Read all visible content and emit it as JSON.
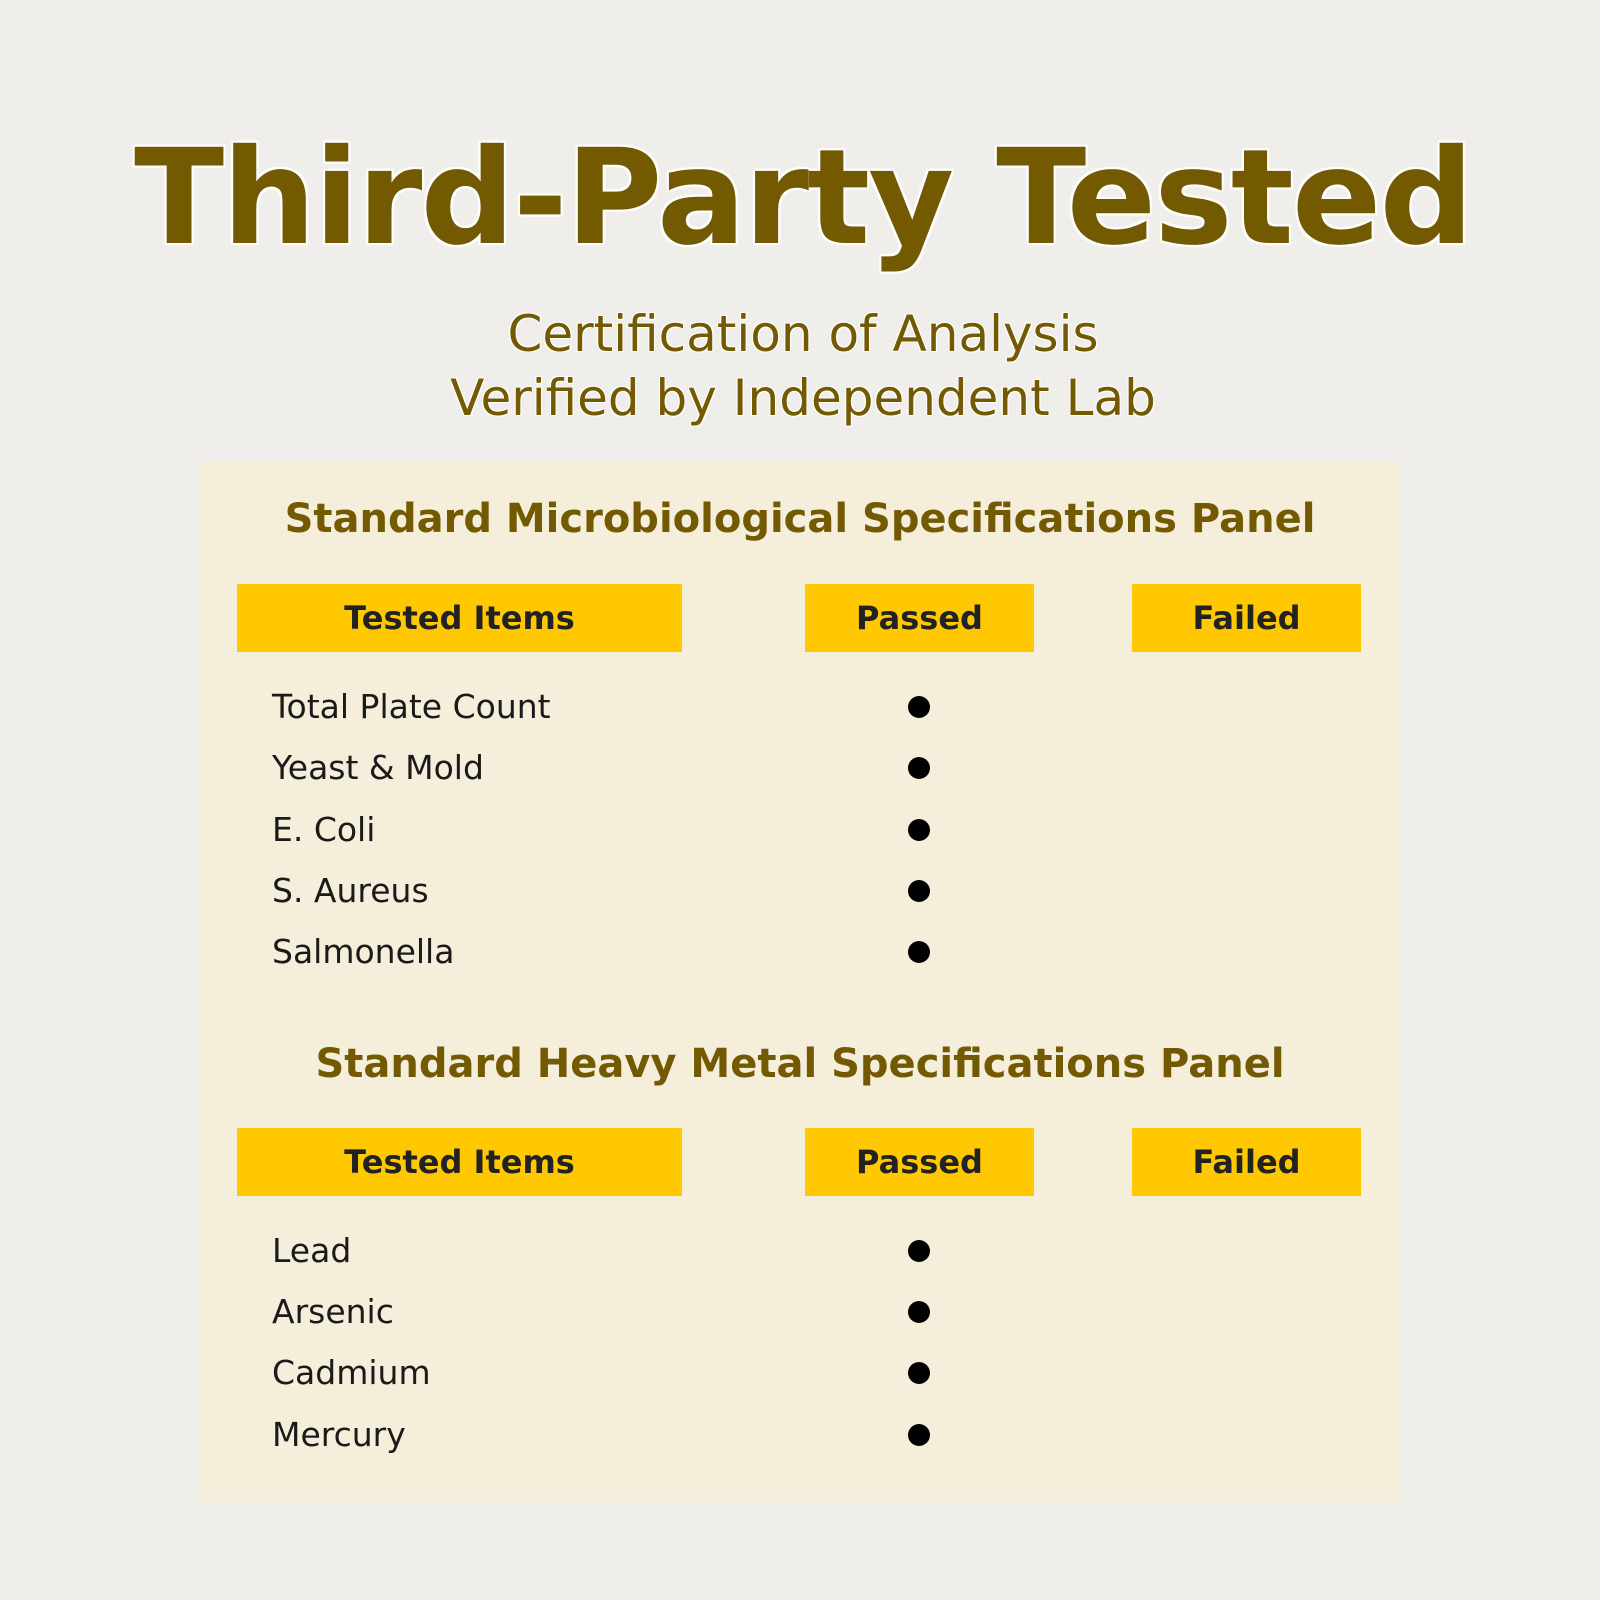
{
  "title": "Third-Party Tested",
  "subtitle": [
    "Certification of Analysis",
    "Verified by Independent Lab"
  ],
  "colors": {
    "title": "#735a00",
    "header_bar": "#ffc800",
    "panel": "#f5eedb",
    "background": "#efeeea"
  },
  "panels": [
    {
      "heading": "Standard Microbiological Specifications Panel",
      "columns": [
        "Tested Items",
        "Passed",
        "Failed"
      ],
      "rows": [
        {
          "item": "Total Plate Count",
          "result": "passed"
        },
        {
          "item": "Yeast & Mold",
          "result": "passed"
        },
        {
          "item": "E. Coli",
          "result": "passed"
        },
        {
          "item": "S. Aureus",
          "result": "passed"
        },
        {
          "item": "Salmonella",
          "result": "passed"
        }
      ]
    },
    {
      "heading": "Standard Heavy Metal Specifications Panel",
      "columns": [
        "Tested Items",
        "Passed",
        "Failed"
      ],
      "rows": [
        {
          "item": "Lead",
          "result": "passed"
        },
        {
          "item": "Arsenic",
          "result": "passed"
        },
        {
          "item": "Cadmium",
          "result": "passed"
        },
        {
          "item": "Mercury",
          "result": "passed"
        }
      ]
    }
  ]
}
